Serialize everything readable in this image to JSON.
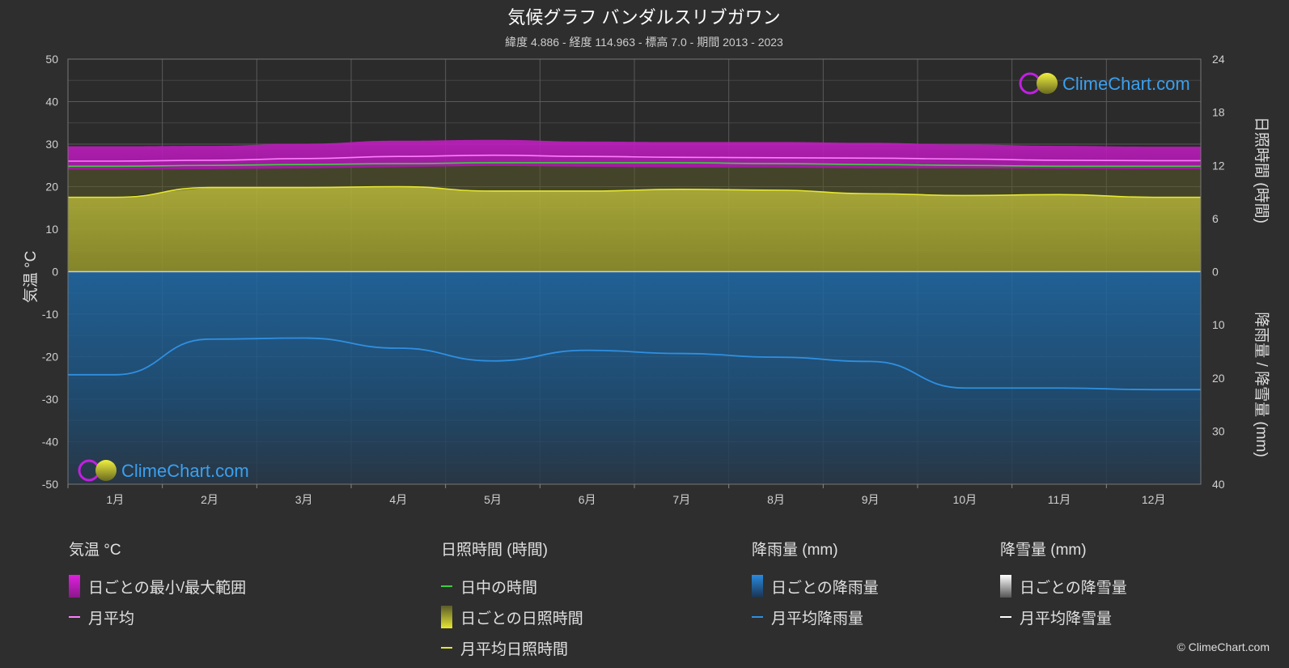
{
  "title": "気候グラフ バンダルスリブガワン",
  "subtitle": "緯度 4.886 - 経度 114.963 - 標高 7.0 - 期間 2013 - 2023",
  "logo_text": "ClimeChart.com",
  "copyright": "© ClimeChart.com",
  "colors": {
    "background": "#2e2e2e",
    "temp_range": "#d21ed2",
    "temp_avg": "#ff7dff",
    "daylight": "#3bd23b",
    "sunshine_fill": "#aaaa2e",
    "sunshine_avg": "#e6e632",
    "rain_fill": "#1f6aa8",
    "rain_avg": "#2f8fe0",
    "snow_avg": "#ffffff"
  },
  "legend": {
    "temperature": {
      "title": "気温 °C",
      "items": [
        "日ごとの最小/最大範囲",
        "月平均"
      ]
    },
    "sunshine": {
      "title": "日照時間 (時間)",
      "items": [
        "日中の時間",
        "日ごとの日照時間",
        "月平均日照時間"
      ]
    },
    "rain": {
      "title": "降雨量 (mm)",
      "items": [
        "日ごとの降雨量",
        "月平均降雨量"
      ]
    },
    "snow": {
      "title": "降雪量 (mm)",
      "items": [
        "日ごとの降雪量",
        "月平均降雪量"
      ]
    }
  },
  "chart_data": {
    "type": "line",
    "categories": [
      "1月",
      "2月",
      "3月",
      "4月",
      "5月",
      "6月",
      "7月",
      "8月",
      "9月",
      "10月",
      "11月",
      "12月"
    ],
    "left_axis": {
      "label": "気温 °C",
      "range": [
        -50,
        50
      ],
      "ticks": [
        50,
        40,
        30,
        20,
        10,
        0,
        -10,
        -20,
        -30,
        -40,
        -50
      ]
    },
    "right_axis_top": {
      "label": "日照時間 (時間)",
      "range": [
        0,
        24
      ],
      "ticks": [
        24,
        18,
        12,
        6,
        0
      ]
    },
    "right_axis_bottom": {
      "label": "降雨量 / 降雪量 (mm)",
      "range": [
        0,
        40
      ],
      "ticks": [
        0,
        10,
        20,
        30,
        40
      ]
    },
    "grid": true,
    "series": [
      {
        "name": "日ごとの最小/最大範囲",
        "axis": "temperature",
        "min": [
          24.0,
          24.1,
          24.3,
          24.6,
          24.9,
          24.7,
          24.5,
          24.5,
          24.3,
          24.3,
          24.2,
          24.1
        ],
        "max": [
          29.5,
          29.6,
          30.1,
          30.8,
          31.0,
          30.6,
          30.5,
          30.5,
          30.3,
          29.9,
          29.6,
          29.4
        ]
      },
      {
        "name": "月平均",
        "axis": "temperature",
        "values": [
          26.0,
          26.2,
          26.6,
          27.1,
          27.4,
          27.1,
          26.9,
          26.8,
          26.7,
          26.5,
          26.2,
          26.1
        ]
      },
      {
        "name": "日中の時間",
        "axis": "sunshine",
        "values": [
          11.9,
          12.0,
          12.1,
          12.2,
          12.3,
          12.3,
          12.3,
          12.2,
          12.1,
          12.0,
          11.9,
          11.9
        ]
      },
      {
        "name": "月平均日照時間",
        "axis": "sunshine",
        "values": [
          8.4,
          9.5,
          9.5,
          9.6,
          9.1,
          9.1,
          9.3,
          9.2,
          8.8,
          8.6,
          8.7,
          8.4
        ]
      },
      {
        "name": "月平均降雨量",
        "axis": "rain",
        "values": [
          19.4,
          12.7,
          12.5,
          14.4,
          16.8,
          14.8,
          15.4,
          16.1,
          16.9,
          21.9,
          21.9,
          22.2
        ]
      },
      {
        "name": "月平均降雪量",
        "axis": "rain",
        "values": [
          0,
          0,
          0,
          0,
          0,
          0,
          0,
          0,
          0,
          0,
          0,
          0
        ]
      }
    ]
  }
}
